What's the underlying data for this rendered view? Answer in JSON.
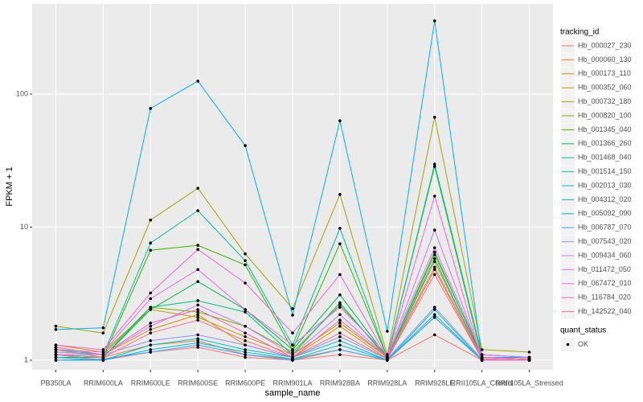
{
  "chart_data": {
    "type": "line",
    "x_label": "sample_name",
    "y_label": "FPKM + 1",
    "categories": [
      "PB350LA",
      "RRIM600LA",
      "RRIM600LE",
      "RRIM600SE",
      "RRIM600PE",
      "RRIM901LA",
      "RRIM928BA",
      "RRIM928LA",
      "RRIM928LE",
      "RRII105LA_Control",
      "RRII105LA_Stressed"
    ],
    "log_y": true,
    "ylim": [
      0.846,
      475
    ],
    "yticks": [
      1,
      10,
      100
    ],
    "grid": true,
    "legend_title": "tracking_id",
    "legend_position": "right",
    "point_legend_title": "quant_status",
    "point_legend_label": "OK",
    "point_color": "#000000",
    "series": [
      {
        "name": "Hb_000027_230",
        "color": "#F8766D",
        "values": [
          1.1,
          1.0,
          1.15,
          1.25,
          1.05,
          1.0,
          1.1,
          1.0,
          1.55,
          1.0,
          1.0
        ]
      },
      {
        "name": "Hb_000060_130",
        "color": "#EA8331",
        "values": [
          1.2,
          1.05,
          1.3,
          1.4,
          1.1,
          1.02,
          1.2,
          1.0,
          2.1,
          1.0,
          1.0
        ]
      },
      {
        "name": "Hb_000173_110",
        "color": "#D89000",
        "values": [
          1.25,
          1.1,
          1.7,
          2.2,
          1.3,
          1.05,
          1.8,
          1.02,
          4.8,
          1.02,
          1.0
        ]
      },
      {
        "name": "Hb_000352_060",
        "color": "#C09B00",
        "values": [
          1.3,
          1.15,
          2.4,
          2.1,
          1.5,
          1.1,
          1.9,
          1.05,
          5.5,
          1.05,
          1.02
        ]
      },
      {
        "name": "Hb_000732_180",
        "color": "#A3A500",
        "values": [
          1.8,
          1.6,
          11.3,
          19.6,
          6.3,
          2.44,
          17.6,
          1.1,
          67,
          1.2,
          1.15
        ]
      },
      {
        "name": "Hb_000820_100",
        "color": "#7CAE00",
        "values": [
          1.15,
          1.1,
          2.5,
          2.3,
          1.8,
          1.15,
          2.6,
          1.05,
          6.2,
          1.1,
          1.05
        ]
      },
      {
        "name": "Hb_001345_040",
        "color": "#39B600",
        "values": [
          1.1,
          1.05,
          6.7,
          7.3,
          5.2,
          1.2,
          7.5,
          1.05,
          28.6,
          1.05,
          1.02
        ]
      },
      {
        "name": "Hb_001366_260",
        "color": "#00BB4E",
        "values": [
          1.1,
          1.05,
          2.4,
          3.9,
          2.4,
          1.2,
          3.1,
          1.05,
          6.5,
          1.05,
          1.02
        ]
      },
      {
        "name": "Hb_001468_040",
        "color": "#00BF7D",
        "values": [
          1.05,
          1.05,
          2.5,
          2.8,
          2.3,
          1.1,
          2.7,
          1.02,
          5.8,
          1.02,
          1.0
        ]
      },
      {
        "name": "Hb_001514_150",
        "color": "#00C1A3",
        "values": [
          1.2,
          1.1,
          7.6,
          13.3,
          5.6,
          1.3,
          9.8,
          1.05,
          29.8,
          1.1,
          1.05
        ]
      },
      {
        "name": "Hb_002013_030",
        "color": "#00BFC4",
        "values": [
          1.05,
          1.0,
          1.3,
          1.45,
          1.2,
          1.05,
          1.4,
          1.0,
          2.4,
          1.0,
          1.0
        ]
      },
      {
        "name": "Hb_004312_020",
        "color": "#00BAE0",
        "values": [
          1.0,
          1.0,
          1.2,
          1.35,
          1.15,
          1.02,
          1.3,
          1.0,
          2.2,
          1.0,
          1.0
        ]
      },
      {
        "name": "Hb_005092_090",
        "color": "#00B0F6",
        "values": [
          1.7,
          1.75,
          78,
          125,
          41,
          2.18,
          63,
          1.65,
          355,
          1.05,
          1.05
        ]
      },
      {
        "name": "Hb_006787_070",
        "color": "#35A2FF",
        "values": [
          1.0,
          1.02,
          1.15,
          1.3,
          1.1,
          1.0,
          1.2,
          1.0,
          2.1,
          1.0,
          1.0
        ]
      },
      {
        "name": "Hb_007543_020",
        "color": "#9590FF",
        "values": [
          1.1,
          1.1,
          1.4,
          1.55,
          1.3,
          1.05,
          1.5,
          1.02,
          2.5,
          1.02,
          1.0
        ]
      },
      {
        "name": "Hb_009434_060",
        "color": "#C77CFF",
        "values": [
          1.15,
          1.1,
          1.8,
          2.6,
          1.8,
          1.1,
          2.2,
          1.05,
          9.5,
          1.05,
          1.02
        ]
      },
      {
        "name": "Hb_011472_050",
        "color": "#E76BF3",
        "values": [
          1.2,
          1.15,
          2.9,
          4.8,
          2.4,
          1.3,
          2.5,
          1.1,
          7,
          1.1,
          1.05
        ]
      },
      {
        "name": "Hb_067472_010",
        "color": "#FA62DB",
        "values": [
          1.3,
          1.2,
          3.2,
          6.8,
          3.8,
          1.6,
          4.4,
          1.05,
          17.1,
          1.0,
          1.0
        ]
      },
      {
        "name": "Hb_116784_020",
        "color": "#FF62BC",
        "values": [
          1.25,
          1.1,
          1.9,
          2.4,
          1.6,
          1.05,
          2.0,
          1.05,
          5,
          1.05,
          1.02
        ]
      },
      {
        "name": "Hb_142522_040",
        "color": "#FF6C91",
        "values": [
          1.1,
          1.05,
          1.6,
          2.0,
          1.4,
          1.05,
          1.6,
          1.02,
          4.4,
          1.02,
          1.0
        ]
      }
    ]
  }
}
